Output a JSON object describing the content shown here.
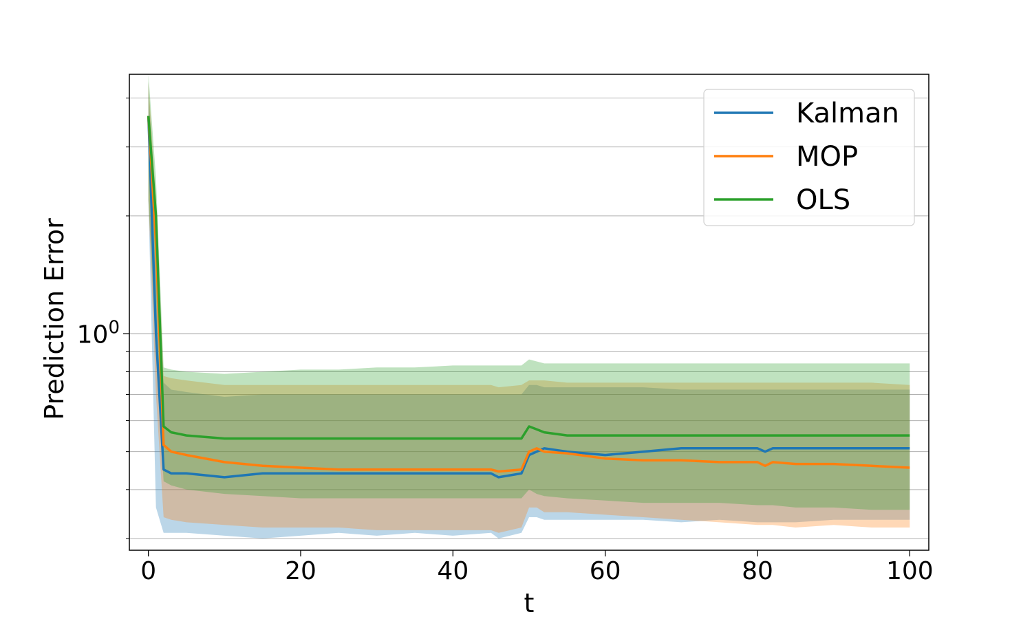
{
  "chart_data": {
    "type": "line",
    "xlabel": "t",
    "ylabel": "Prediction Error",
    "xlim": [
      -2.5,
      102.5
    ],
    "ylim": [
      0.28,
      4.6
    ],
    "yscale": "log",
    "x_ticks": [
      0,
      20,
      40,
      60,
      80,
      100
    ],
    "y_major_ticks": [
      {
        "value": 1,
        "label": "10",
        "exp": "0"
      }
    ],
    "y_minor_ticks": [
      0.3,
      0.4,
      0.5,
      0.6,
      0.7,
      0.8,
      0.9,
      2,
      3,
      4
    ],
    "grid": "y-major-and-minor",
    "legend": "top-right",
    "x_points": [
      0,
      1,
      2,
      3,
      5,
      10,
      15,
      20,
      25,
      30,
      35,
      40,
      45,
      46,
      49,
      50,
      51,
      52,
      55,
      60,
      65,
      70,
      75,
      80,
      81,
      82,
      85,
      90,
      95,
      100
    ],
    "series": [
      {
        "name": "Kalman",
        "color": "#1f77b4",
        "mean": [
          3.6,
          1.0,
          0.45,
          0.44,
          0.44,
          0.43,
          0.44,
          0.44,
          0.44,
          0.44,
          0.44,
          0.44,
          0.44,
          0.43,
          0.44,
          0.49,
          0.5,
          0.51,
          0.5,
          0.49,
          0.5,
          0.51,
          0.51,
          0.51,
          0.5,
          0.51,
          0.51,
          0.51,
          0.51,
          0.51
        ],
        "lower": [
          2.2,
          0.36,
          0.31,
          0.31,
          0.31,
          0.305,
          0.3,
          0.305,
          0.31,
          0.305,
          0.31,
          0.305,
          0.31,
          0.3,
          0.31,
          0.34,
          0.34,
          0.335,
          0.335,
          0.335,
          0.335,
          0.33,
          0.335,
          0.33,
          0.33,
          0.33,
          0.33,
          0.335,
          0.335,
          0.335
        ],
        "upper": [
          4.4,
          1.8,
          0.75,
          0.72,
          0.71,
          0.69,
          0.7,
          0.7,
          0.7,
          0.7,
          0.7,
          0.7,
          0.7,
          0.7,
          0.7,
          0.74,
          0.74,
          0.73,
          0.73,
          0.73,
          0.73,
          0.72,
          0.72,
          0.72,
          0.72,
          0.72,
          0.72,
          0.72,
          0.72,
          0.72
        ]
      },
      {
        "name": "MOP",
        "color": "#ff7f0e",
        "mean": [
          3.6,
          1.7,
          0.52,
          0.5,
          0.49,
          0.47,
          0.46,
          0.455,
          0.45,
          0.45,
          0.45,
          0.45,
          0.45,
          0.445,
          0.45,
          0.5,
          0.51,
          0.5,
          0.495,
          0.48,
          0.475,
          0.475,
          0.47,
          0.47,
          0.46,
          0.47,
          0.465,
          0.465,
          0.46,
          0.455
        ],
        "lower": [
          2.2,
          0.7,
          0.34,
          0.335,
          0.33,
          0.325,
          0.32,
          0.32,
          0.32,
          0.315,
          0.315,
          0.315,
          0.315,
          0.31,
          0.32,
          0.36,
          0.36,
          0.35,
          0.35,
          0.345,
          0.34,
          0.335,
          0.33,
          0.325,
          0.325,
          0.325,
          0.32,
          0.325,
          0.32,
          0.32
        ],
        "upper": [
          4.4,
          2.2,
          0.78,
          0.77,
          0.76,
          0.74,
          0.74,
          0.74,
          0.74,
          0.74,
          0.74,
          0.74,
          0.74,
          0.73,
          0.74,
          0.76,
          0.76,
          0.76,
          0.75,
          0.75,
          0.75,
          0.75,
          0.75,
          0.75,
          0.75,
          0.75,
          0.75,
          0.75,
          0.75,
          0.74
        ]
      },
      {
        "name": "OLS",
        "color": "#2ca02c",
        "mean": [
          3.6,
          2.0,
          0.58,
          0.56,
          0.55,
          0.54,
          0.54,
          0.54,
          0.54,
          0.54,
          0.54,
          0.54,
          0.54,
          0.54,
          0.54,
          0.58,
          0.57,
          0.56,
          0.55,
          0.55,
          0.55,
          0.55,
          0.55,
          0.55,
          0.55,
          0.55,
          0.55,
          0.55,
          0.55,
          0.55
        ],
        "lower": [
          2.2,
          0.9,
          0.42,
          0.41,
          0.4,
          0.39,
          0.385,
          0.38,
          0.38,
          0.38,
          0.38,
          0.38,
          0.38,
          0.38,
          0.38,
          0.4,
          0.39,
          0.385,
          0.38,
          0.375,
          0.37,
          0.37,
          0.37,
          0.365,
          0.365,
          0.365,
          0.36,
          0.36,
          0.355,
          0.355
        ],
        "upper": [
          4.6,
          2.5,
          0.82,
          0.81,
          0.8,
          0.79,
          0.8,
          0.81,
          0.81,
          0.82,
          0.82,
          0.83,
          0.83,
          0.83,
          0.83,
          0.86,
          0.85,
          0.84,
          0.84,
          0.84,
          0.84,
          0.84,
          0.84,
          0.84,
          0.84,
          0.84,
          0.84,
          0.84,
          0.84,
          0.84
        ]
      }
    ]
  }
}
